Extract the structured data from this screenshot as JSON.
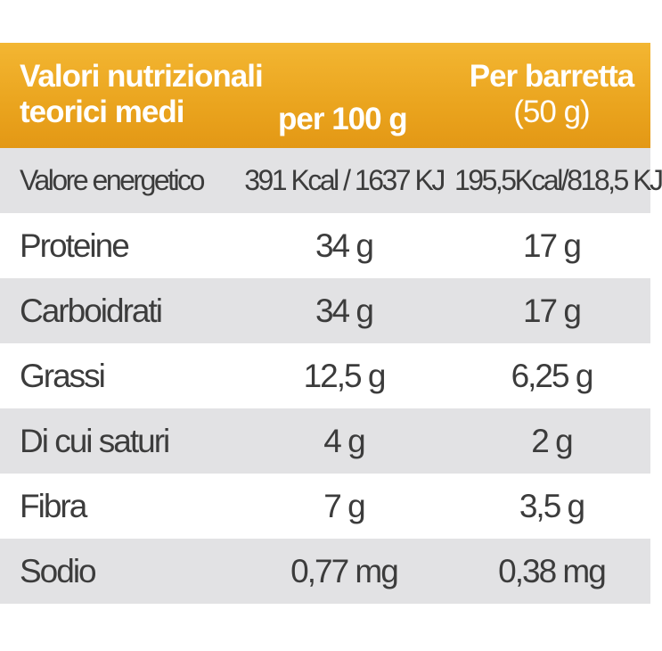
{
  "header": {
    "col1_line1": "Valori nutrizionali",
    "col1_line2": "teorici medi",
    "col2": "per 100 g",
    "col3_line1": "Per barretta",
    "col3_line2": "(50 g)"
  },
  "rows": [
    {
      "label": "Valore energetico",
      "per100": "391 Kcal / 1637 KJ",
      "perbar": "195,5Kcal/818,5 KJ"
    },
    {
      "label": "Proteine",
      "per100": "34 g",
      "perbar": "17 g"
    },
    {
      "label": "Carboidrati",
      "per100": "34 g",
      "perbar": "17 g"
    },
    {
      "label": "Grassi",
      "per100": "12,5 g",
      "perbar": "6,25 g"
    },
    {
      "label": "Di cui saturi",
      "per100": "4 g",
      "perbar": "2 g"
    },
    {
      "label": "Fibra",
      "per100": "7 g",
      "perbar": "3,5 g"
    },
    {
      "label": "Sodio",
      "per100": "0,77 mg",
      "perbar": "0,38 mg"
    }
  ],
  "colors": {
    "header_bg": "#eaa41e",
    "header_text": "#ffffff",
    "shaded_row": "#e2e2e4",
    "plain_row": "#ffffff",
    "body_text": "#3c3c3c"
  }
}
